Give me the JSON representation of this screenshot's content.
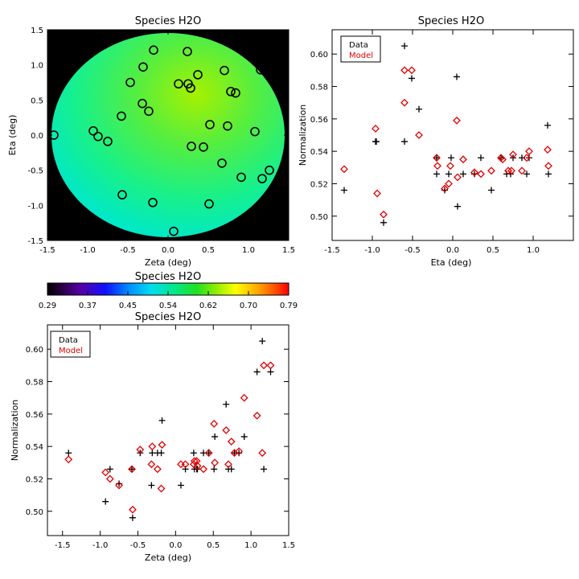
{
  "chart_data": [
    {
      "id": "map",
      "type": "heatmap",
      "title": "Species H2O",
      "xlabel": "Zeta (deg)",
      "ylabel": "Eta (deg)",
      "xlim": [
        -1.5,
        1.5
      ],
      "ylim": [
        -1.5,
        1.5
      ],
      "xticks": [
        -1.5,
        -1.0,
        -0.5,
        0.0,
        0.5,
        1.0,
        1.5
      ],
      "yticks": [
        -1.5,
        -1.0,
        -0.5,
        0.0,
        0.5,
        1.0,
        1.5
      ],
      "field_radius_deg": 1.45,
      "background_color": "#000000",
      "marker": "circle",
      "points": [
        {
          "zeta": -1.42,
          "eta": 0.0
        },
        {
          "zeta": -0.93,
          "eta": 0.06
        },
        {
          "zeta": -0.87,
          "eta": -0.02
        },
        {
          "zeta": -0.75,
          "eta": -0.09
        },
        {
          "zeta": -0.57,
          "eta": -0.85
        },
        {
          "zeta": -0.58,
          "eta": 0.27
        },
        {
          "zeta": -0.47,
          "eta": 0.75
        },
        {
          "zeta": -0.32,
          "eta": 0.45
        },
        {
          "zeta": -0.31,
          "eta": 0.97
        },
        {
          "zeta": -0.24,
          "eta": 0.34
        },
        {
          "zeta": -0.18,
          "eta": 1.21
        },
        {
          "zeta": -0.19,
          "eta": -0.96
        },
        {
          "zeta": 0.07,
          "eta": -1.37
        },
        {
          "zeta": 0.13,
          "eta": 0.73
        },
        {
          "zeta": 0.24,
          "eta": 1.19
        },
        {
          "zeta": 0.25,
          "eta": 0.73
        },
        {
          "zeta": 0.28,
          "eta": 0.67
        },
        {
          "zeta": 0.29,
          "eta": -0.16
        },
        {
          "zeta": 0.37,
          "eta": 0.86
        },
        {
          "zeta": 0.44,
          "eta": -0.17
        },
        {
          "zeta": 0.52,
          "eta": 0.15
        },
        {
          "zeta": 0.51,
          "eta": -0.98
        },
        {
          "zeta": 0.67,
          "eta": -0.4
        },
        {
          "zeta": 0.7,
          "eta": 0.92
        },
        {
          "zeta": 0.74,
          "eta": 0.13
        },
        {
          "zeta": 0.78,
          "eta": 0.62
        },
        {
          "zeta": 0.84,
          "eta": 0.6
        },
        {
          "zeta": 0.91,
          "eta": -0.6
        },
        {
          "zeta": 1.08,
          "eta": 0.05
        },
        {
          "zeta": 1.15,
          "eta": 0.93
        },
        {
          "zeta": 1.17,
          "eta": -0.62
        },
        {
          "zeta": 1.26,
          "eta": -0.5
        }
      ]
    },
    {
      "id": "colorbar",
      "type": "colorbar",
      "title": "Species H2O",
      "range": [
        0.29,
        0.79
      ],
      "tick_labels": [
        "0.29",
        "0.37",
        "0.45",
        "0.54",
        "0.62",
        "0.70",
        "0.79"
      ]
    },
    {
      "id": "eta_scatter",
      "type": "scatter",
      "title": "Species H2O",
      "xlabel": "Eta (deg)",
      "ylabel": "Normalization",
      "xlim": [
        -1.5,
        1.5
      ],
      "ylim": [
        0.485,
        0.615
      ],
      "xticks": [
        -1.5,
        -1.0,
        -0.5,
        0.0,
        0.5,
        1.0
      ],
      "yticks": [
        0.5,
        0.52,
        0.54,
        0.56,
        0.58,
        0.6
      ],
      "ytick_labels": [
        "0.50",
        "0.52",
        "0.54",
        "0.56",
        "0.58",
        "0.60"
      ],
      "legend": {
        "position": "top-left",
        "entries": [
          {
            "label": "Data",
            "color": "#000000"
          },
          {
            "label": "Model",
            "color": "#e00000"
          }
        ]
      },
      "series": [
        {
          "name": "Data",
          "marker": "plus",
          "color": "#000000",
          "points": [
            [
              -1.35,
              0.516
            ],
            [
              -0.96,
              0.546
            ],
            [
              -0.95,
              0.546
            ],
            [
              -0.86,
              0.496
            ],
            [
              -0.6,
              0.605
            ],
            [
              -0.6,
              0.546
            ],
            [
              -0.51,
              0.585
            ],
            [
              -0.42,
              0.566
            ],
            [
              -0.2,
              0.536
            ],
            [
              -0.2,
              0.526
            ],
            [
              -0.1,
              0.516
            ],
            [
              -0.05,
              0.526
            ],
            [
              -0.02,
              0.536
            ],
            [
              0.05,
              0.586
            ],
            [
              0.06,
              0.506
            ],
            [
              0.13,
              0.526
            ],
            [
              0.27,
              0.526
            ],
            [
              0.35,
              0.536
            ],
            [
              0.48,
              0.516
            ],
            [
              0.6,
              0.536
            ],
            [
              0.67,
              0.526
            ],
            [
              0.72,
              0.526
            ],
            [
              0.75,
              0.536
            ],
            [
              0.86,
              0.536
            ],
            [
              0.92,
              0.526
            ],
            [
              0.95,
              0.536
            ],
            [
              1.18,
              0.556
            ],
            [
              1.19,
              0.526
            ]
          ]
        },
        {
          "name": "Model",
          "marker": "diamond",
          "color": "#e00000",
          "points": [
            [
              -1.35,
              0.529
            ],
            [
              -0.96,
              0.554
            ],
            [
              -0.94,
              0.514
            ],
            [
              -0.86,
              0.501
            ],
            [
              -0.6,
              0.59
            ],
            [
              -0.6,
              0.57
            ],
            [
              -0.51,
              0.59
            ],
            [
              -0.42,
              0.55
            ],
            [
              -0.2,
              0.536
            ],
            [
              -0.19,
              0.531
            ],
            [
              -0.1,
              0.517
            ],
            [
              -0.05,
              0.52
            ],
            [
              -0.03,
              0.531
            ],
            [
              0.05,
              0.559
            ],
            [
              0.06,
              0.524
            ],
            [
              0.13,
              0.535
            ],
            [
              0.27,
              0.527
            ],
            [
              0.35,
              0.526
            ],
            [
              0.48,
              0.528
            ],
            [
              0.6,
              0.536
            ],
            [
              0.62,
              0.535
            ],
            [
              0.69,
              0.528
            ],
            [
              0.73,
              0.528
            ],
            [
              0.75,
              0.538
            ],
            [
              0.86,
              0.528
            ],
            [
              0.92,
              0.536
            ],
            [
              0.95,
              0.54
            ],
            [
              1.18,
              0.541
            ],
            [
              1.19,
              0.531
            ]
          ]
        }
      ]
    },
    {
      "id": "zeta_scatter",
      "type": "scatter",
      "title": "Species H2O",
      "xlabel": "Zeta (deg)",
      "ylabel": "Normalization",
      "xlim": [
        -1.7,
        1.5
      ],
      "ylim": [
        0.485,
        0.615
      ],
      "xticks": [
        -1.5,
        -1.0,
        -0.5,
        0.0,
        0.5,
        1.0,
        1.5
      ],
      "yticks": [
        0.5,
        0.52,
        0.54,
        0.56,
        0.58,
        0.6
      ],
      "ytick_labels": [
        "0.50",
        "0.52",
        "0.54",
        "0.56",
        "0.58",
        "0.60"
      ],
      "legend": {
        "position": "top-left",
        "entries": [
          {
            "label": "Data",
            "color": "#000000"
          },
          {
            "label": "Model",
            "color": "#e00000"
          }
        ]
      },
      "series": [
        {
          "name": "Data",
          "marker": "plus",
          "color": "#000000",
          "points": [
            [
              -1.42,
              0.536
            ],
            [
              -0.93,
              0.506
            ],
            [
              -0.87,
              0.526
            ],
            [
              -0.75,
              0.517
            ],
            [
              -0.58,
              0.526
            ],
            [
              -0.57,
              0.496
            ],
            [
              -0.47,
              0.536
            ],
            [
              -0.32,
              0.516
            ],
            [
              -0.31,
              0.536
            ],
            [
              -0.24,
              0.536
            ],
            [
              -0.19,
              0.536
            ],
            [
              -0.18,
              0.556
            ],
            [
              0.07,
              0.516
            ],
            [
              0.13,
              0.526
            ],
            [
              0.24,
              0.536
            ],
            [
              0.25,
              0.526
            ],
            [
              0.28,
              0.526
            ],
            [
              0.29,
              0.526
            ],
            [
              0.37,
              0.536
            ],
            [
              0.44,
              0.536
            ],
            [
              0.51,
              0.526
            ],
            [
              0.52,
              0.546
            ],
            [
              0.67,
              0.566
            ],
            [
              0.7,
              0.526
            ],
            [
              0.74,
              0.526
            ],
            [
              0.78,
              0.536
            ],
            [
              0.84,
              0.536
            ],
            [
              0.91,
              0.546
            ],
            [
              1.08,
              0.586
            ],
            [
              1.15,
              0.605
            ],
            [
              1.17,
              0.526
            ],
            [
              1.26,
              0.586
            ]
          ]
        },
        {
          "name": "Model",
          "marker": "diamond",
          "color": "#e00000",
          "points": [
            [
              -1.42,
              0.532
            ],
            [
              -0.93,
              0.524
            ],
            [
              -0.87,
              0.52
            ],
            [
              -0.75,
              0.516
            ],
            [
              -0.58,
              0.526
            ],
            [
              -0.57,
              0.501
            ],
            [
              -0.47,
              0.538
            ],
            [
              -0.32,
              0.529
            ],
            [
              -0.31,
              0.54
            ],
            [
              -0.24,
              0.526
            ],
            [
              -0.19,
              0.514
            ],
            [
              -0.18,
              0.541
            ],
            [
              0.07,
              0.529
            ],
            [
              0.13,
              0.529
            ],
            [
              0.24,
              0.529
            ],
            [
              0.25,
              0.531
            ],
            [
              0.28,
              0.531
            ],
            [
              0.29,
              0.528
            ],
            [
              0.37,
              0.526
            ],
            [
              0.44,
              0.536
            ],
            [
              0.51,
              0.554
            ],
            [
              0.52,
              0.53
            ],
            [
              0.67,
              0.55
            ],
            [
              0.7,
              0.529
            ],
            [
              0.74,
              0.543
            ],
            [
              0.78,
              0.536
            ],
            [
              0.84,
              0.537
            ],
            [
              0.91,
              0.57
            ],
            [
              1.08,
              0.559
            ],
            [
              1.15,
              0.536
            ],
            [
              1.17,
              0.59
            ],
            [
              1.26,
              0.59
            ]
          ]
        }
      ]
    }
  ]
}
